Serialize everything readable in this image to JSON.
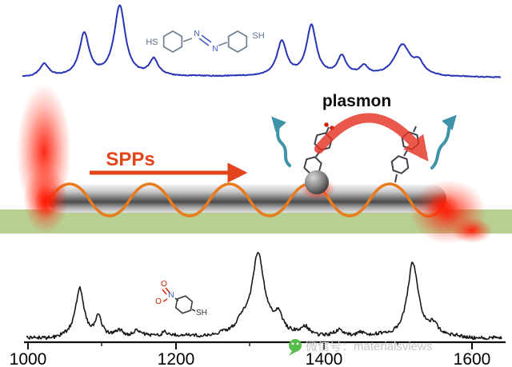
{
  "labels": {
    "plasmon": "plasmon",
    "spps": "SPPs"
  },
  "molecule_top": {
    "left_group": "HS",
    "n1": "N",
    "n2": "N",
    "right_group": "SH"
  },
  "molecule_bottom": {
    "o1": "O",
    "o2": "O",
    "n": "N",
    "sh": "SH"
  },
  "watermark": {
    "text": "微信号：materialsviews",
    "icon": "wechat-icon"
  },
  "colors": {
    "spectrum_top": "#2734b5",
    "spectrum_bottom": "#181818",
    "spps_arrow": "#e2441c",
    "spp_wave": "#e97a1d",
    "plasmon_arrow": "#e63324",
    "emission_arrow": "#3e93a8",
    "substrate_green": "#b8cf92",
    "laser_glow_red": "#ff1e05",
    "watermark_green": "#57be4b"
  },
  "chart_data": [
    {
      "id": "top_spectrum",
      "type": "line",
      "title": "",
      "description": "Blue Raman/SERS spectrum across top of figure, intensity in arbitrary units, no axis shown",
      "color": "#2734b5",
      "x_range_cm_1": [
        990,
        1640
      ],
      "peaks": [
        {
          "c": 1022,
          "i": 18,
          "w": 7
        },
        {
          "c": 1076,
          "i": 60,
          "w": 8
        },
        {
          "c": 1124,
          "i": 100,
          "w": 9
        },
        {
          "c": 1170,
          "i": 23,
          "w": 7
        },
        {
          "c": 1343,
          "i": 48,
          "w": 8
        },
        {
          "c": 1383,
          "i": 71,
          "w": 8
        },
        {
          "c": 1424,
          "i": 27,
          "w": 7
        },
        {
          "c": 1454,
          "i": 13,
          "w": 7
        },
        {
          "c": 1506,
          "i": 44,
          "w": 13
        },
        {
          "c": 1528,
          "i": 16,
          "w": 8
        }
      ]
    },
    {
      "id": "bottom_spectrum",
      "type": "line",
      "title": "",
      "description": "Black noisy Raman spectrum across bottom of figure with x-axis in wavenumbers",
      "color": "#181818",
      "x_range_cm_1": [
        1000,
        1640
      ],
      "ticks_major": [
        1000,
        1200,
        1400,
        1600
      ],
      "ticks_minor": [
        1100,
        1300,
        1500
      ],
      "peaks": [
        {
          "c": 1070,
          "i": 62,
          "w": 7
        },
        {
          "c": 1095,
          "i": 24,
          "w": 5
        },
        {
          "c": 1124,
          "i": 8,
          "w": 6
        },
        {
          "c": 1146,
          "i": 7,
          "w": 6
        },
        {
          "c": 1185,
          "i": 6,
          "w": 6
        },
        {
          "c": 1290,
          "i": 15,
          "w": 9
        },
        {
          "c": 1311,
          "i": 100,
          "w": 10
        },
        {
          "c": 1338,
          "i": 22,
          "w": 8
        },
        {
          "c": 1375,
          "i": 9,
          "w": 6
        },
        {
          "c": 1420,
          "i": 6,
          "w": 6
        },
        {
          "c": 1450,
          "i": 5,
          "w": 6
        },
        {
          "c": 1520,
          "i": 92,
          "w": 9
        },
        {
          "c": 1548,
          "i": 14,
          "w": 8
        }
      ]
    }
  ]
}
